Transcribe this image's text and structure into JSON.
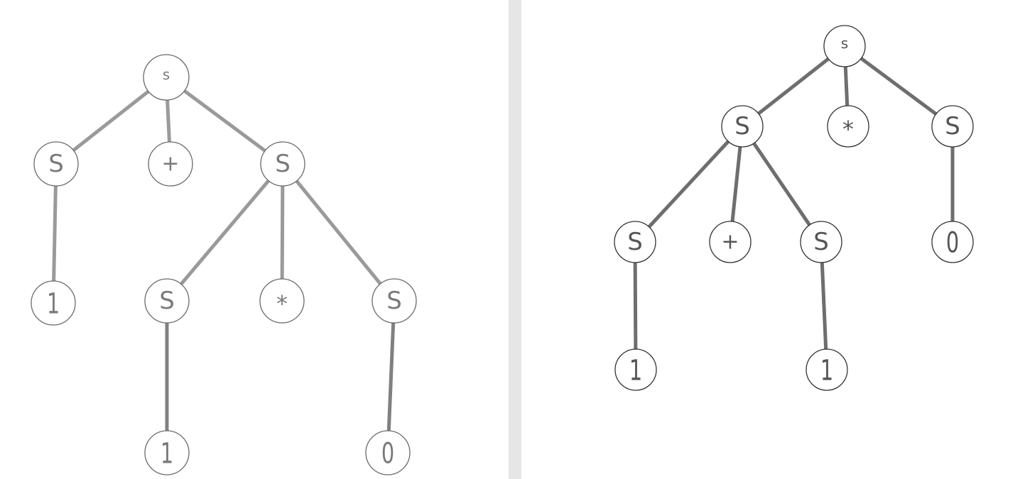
{
  "trees": [
    {
      "id": "left",
      "colors": {
        "edge": "#9a9a9a",
        "edge_dark": "#808080",
        "circle": "#6a6a6a",
        "text": "#7a7a7a"
      },
      "nodes": [
        {
          "id": "root",
          "label": "s"
        },
        {
          "id": "s1",
          "label": "S"
        },
        {
          "id": "plus",
          "label": "+"
        },
        {
          "id": "s2",
          "label": "S"
        },
        {
          "id": "one1",
          "label": "1"
        },
        {
          "id": "s3",
          "label": "S"
        },
        {
          "id": "star",
          "label": "*"
        },
        {
          "id": "s4",
          "label": "S"
        },
        {
          "id": "one2",
          "label": "1"
        },
        {
          "id": "zero",
          "label": "0"
        }
      ],
      "edges": [
        [
          "root",
          "s1"
        ],
        [
          "root",
          "plus"
        ],
        [
          "root",
          "s2"
        ],
        [
          "s1",
          "one1"
        ],
        [
          "s2",
          "s3"
        ],
        [
          "s2",
          "star"
        ],
        [
          "s2",
          "s4"
        ],
        [
          "s3",
          "one2"
        ],
        [
          "s4",
          "zero"
        ]
      ]
    },
    {
      "id": "right",
      "colors": {
        "edge": "#6e6e6e",
        "edge_dark": "#6e6e6e",
        "circle": "#333333",
        "text": "#555555"
      },
      "nodes": [
        {
          "id": "root",
          "label": "s"
        },
        {
          "id": "s1",
          "label": "S"
        },
        {
          "id": "star",
          "label": "*"
        },
        {
          "id": "s2",
          "label": "S"
        },
        {
          "id": "s3",
          "label": "S"
        },
        {
          "id": "plus",
          "label": "+"
        },
        {
          "id": "s4",
          "label": "S"
        },
        {
          "id": "zero",
          "label": "0"
        },
        {
          "id": "one1",
          "label": "1"
        },
        {
          "id": "one2",
          "label": "1"
        }
      ],
      "edges": [
        [
          "root",
          "s1"
        ],
        [
          "root",
          "star"
        ],
        [
          "root",
          "s2"
        ],
        [
          "s1",
          "s3"
        ],
        [
          "s1",
          "plus"
        ],
        [
          "s1",
          "s4"
        ],
        [
          "s2",
          "zero"
        ],
        [
          "s3",
          "one1"
        ],
        [
          "s4",
          "one2"
        ]
      ]
    }
  ]
}
